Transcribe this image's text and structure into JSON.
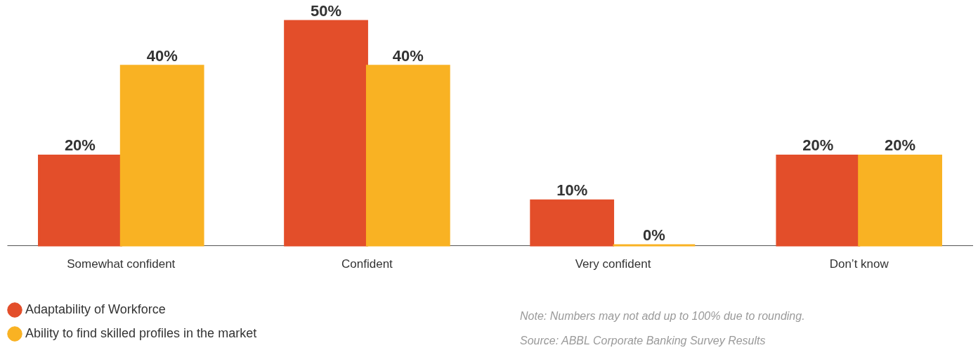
{
  "chart_data": {
    "type": "bar",
    "categories": [
      "Somewhat confident",
      "Confident",
      "Very confident",
      "Don’t know"
    ],
    "series": [
      {
        "name": "Adaptability of Workforce",
        "color": "#e34e2a",
        "values": [
          20,
          50,
          10,
          20
        ],
        "value_labels": [
          "20%",
          "50%",
          "10%",
          "20%"
        ]
      },
      {
        "name": "Ability to find skilled profiles in the market",
        "color": "#f9b223",
        "values": [
          40,
          40,
          0,
          20
        ],
        "value_labels": [
          "40%",
          "40%",
          "0%",
          "20%"
        ]
      }
    ],
    "legend": "bottom left",
    "grid": false,
    "annotations": [
      "Note: Numbers may not add up to 100% due to rounding.",
      "Source: ABBL Corporate Banking Survey Results"
    ]
  }
}
